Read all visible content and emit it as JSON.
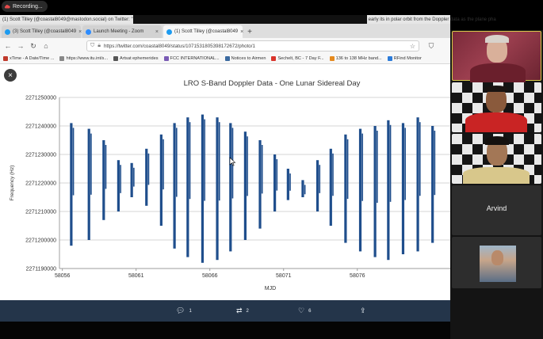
{
  "recording": {
    "label": "Recording..."
  },
  "window": {
    "title_left": "(1) Scott Tilley (@coastal8049@mastodon.social) on Twitter: \"",
    "title_right": "early its in polar orbit from the Doppler data as the plane pha"
  },
  "tabs": [
    {
      "label": "(3) Scott Tilley (@coastal8049",
      "active": false,
      "icon_color": "#1d9bf0"
    },
    {
      "label": "Launch Meeting - Zoom",
      "active": false,
      "icon_color": "#2d8cff"
    },
    {
      "label": "(1) Scott Tilley (@coastal8049",
      "active": true,
      "icon_color": "#1d9bf0"
    }
  ],
  "nav": {
    "url": "https://twitter.com/coastal8049/status/1071531805398172672/photo/1"
  },
  "bookmarks": [
    {
      "label": "xTime - A Date/Time ...",
      "color": "#c0392b"
    },
    {
      "label": "https://www.itu.int/s...",
      "color": "#888888"
    },
    {
      "label": "Artsat ephemerides",
      "color": "#555555"
    },
    {
      "label": "FCC INTERNATIONAL...",
      "color": "#7a5bb5"
    },
    {
      "label": "Notices to Airmen",
      "color": "#3b6aa0"
    },
    {
      "label": "Sechelt, BC - 7 Day F...",
      "color": "#d9342b"
    },
    {
      "label": "136 to 138 MHz band...",
      "color": "#e58a1f"
    },
    {
      "label": "RFind Monitor",
      "color": "#2b7bd9"
    }
  ],
  "chart_data": {
    "type": "scatter",
    "title": "LRO S-Band Doppler Data - One Lunar Sidereal Day",
    "xlabel": "MJD",
    "ylabel": "Frequency (Hz)",
    "xlim": [
      58055.8,
      58082.3
    ],
    "ylim": [
      2271190000,
      2271250000
    ],
    "xticks": [
      58056,
      58061,
      58066,
      58071,
      58076
    ],
    "yticks": [
      2271190000,
      2271200000,
      2271210000,
      2271220000,
      2271230000,
      2271240000,
      2271250000
    ],
    "grid": true,
    "series": [
      {
        "color": "#1f4e8c",
        "passes": [
          {
            "x": 58056.6,
            "y_min": 2271198000,
            "y_max": 2271241000
          },
          {
            "x": 58057.8,
            "y_min": 2271200000,
            "y_max": 2271239000
          },
          {
            "x": 58058.8,
            "y_min": 2271207000,
            "y_max": 2271235000
          },
          {
            "x": 58059.8,
            "y_min": 2271210000,
            "y_max": 2271228000
          },
          {
            "x": 58060.7,
            "y_min": 2271215000,
            "y_max": 2271227000
          },
          {
            "x": 58061.7,
            "y_min": 2271212000,
            "y_max": 2271232000
          },
          {
            "x": 58062.7,
            "y_min": 2271205000,
            "y_max": 2271237000
          },
          {
            "x": 58063.6,
            "y_min": 2271197000,
            "y_max": 2271241000
          },
          {
            "x": 58064.5,
            "y_min": 2271194000,
            "y_max": 2271243000
          },
          {
            "x": 58065.5,
            "y_min": 2271192000,
            "y_max": 2271244000
          },
          {
            "x": 58066.5,
            "y_min": 2271193000,
            "y_max": 2271243000
          },
          {
            "x": 58067.4,
            "y_min": 2271196000,
            "y_max": 2271241000
          },
          {
            "x": 58068.4,
            "y_min": 2271200000,
            "y_max": 2271238000
          },
          {
            "x": 58069.4,
            "y_min": 2271204000,
            "y_max": 2271235000
          },
          {
            "x": 58070.4,
            "y_min": 2271210000,
            "y_max": 2271230000
          },
          {
            "x": 58071.3,
            "y_min": 2271214000,
            "y_max": 2271225000
          },
          {
            "x": 58072.3,
            "y_min": 2271215000,
            "y_max": 2271221000
          },
          {
            "x": 58073.3,
            "y_min": 2271210000,
            "y_max": 2271228000
          },
          {
            "x": 58074.2,
            "y_min": 2271205000,
            "y_max": 2271232000
          },
          {
            "x": 58075.2,
            "y_min": 2271199000,
            "y_max": 2271237000
          },
          {
            "x": 58076.2,
            "y_min": 2271196000,
            "y_max": 2271239000
          },
          {
            "x": 58077.2,
            "y_min": 2271194000,
            "y_max": 2271240000
          },
          {
            "x": 58078.1,
            "y_min": 2271193000,
            "y_max": 2271242000
          },
          {
            "x": 58079.1,
            "y_min": 2271195000,
            "y_max": 2271241000
          },
          {
            "x": 58080.1,
            "y_min": 2271196000,
            "y_max": 2271243000
          },
          {
            "x": 58081.1,
            "y_min": 2271199000,
            "y_max": 2271240000
          }
        ]
      }
    ]
  },
  "tweet_actions": {
    "replies": "1",
    "retweets": "2",
    "likes": "6"
  },
  "zoom": {
    "participant_name": "Arvind",
    "colors": {
      "highlight_border": "#d6c94a",
      "tile_bg": "#2d2d2d"
    }
  }
}
